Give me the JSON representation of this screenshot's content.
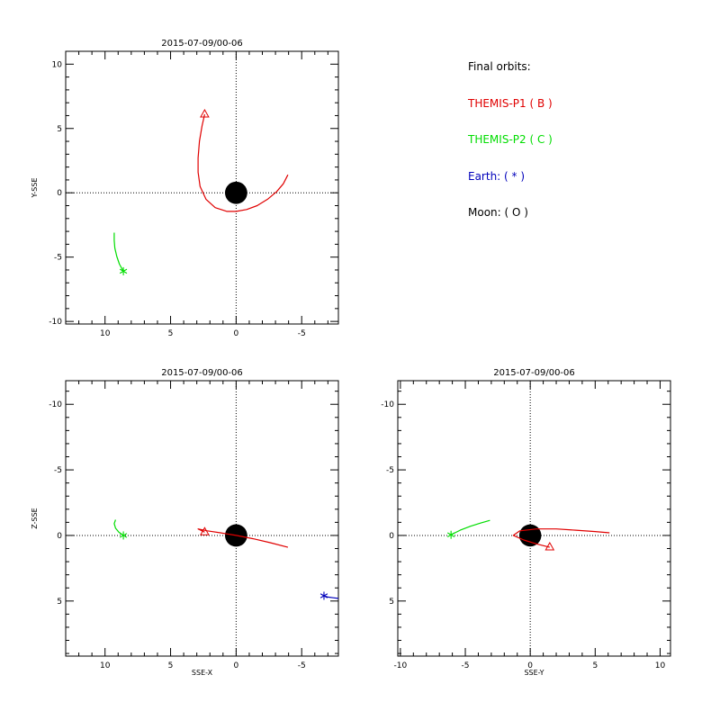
{
  "legend": {
    "header": "Final orbits:",
    "entries": [
      {
        "label": "THEMIS-P1 ( B )",
        "color": "#e00000"
      },
      {
        "label": "THEMIS-P2 ( C )",
        "color": "#00dd00"
      },
      {
        "label": "Earth: ( * )",
        "color": "#0000bb"
      },
      {
        "label": "Moon: ( O )",
        "color": "#000000"
      }
    ]
  },
  "chart_data": [
    {
      "type": "line",
      "id": "xy",
      "title": "2015-07-09/00-06",
      "xlabel": "",
      "ylabel": "Y-SSE",
      "xlim": [
        13,
        -7.8
      ],
      "ylim": [
        11,
        -10.2
      ],
      "xticks": [
        10,
        5,
        0,
        -5
      ],
      "yticks": [
        -10,
        -5,
        0,
        5,
        10
      ],
      "earth_disk": {
        "x": 0,
        "y": 0,
        "r": 0.85
      },
      "series": [
        {
          "color": "#e00000",
          "marker_end": "triangle",
          "points": [
            [
              2.4,
              6.1
            ],
            [
              2.6,
              5.2
            ],
            [
              2.8,
              4.0
            ],
            [
              2.9,
              2.7
            ],
            [
              2.9,
              1.6
            ],
            [
              2.75,
              0.5
            ],
            [
              2.3,
              -0.5
            ],
            [
              1.6,
              -1.15
            ],
            [
              0.7,
              -1.45
            ],
            [
              0,
              -1.45
            ],
            [
              -0.8,
              -1.3
            ],
            [
              -1.6,
              -1.0
            ],
            [
              -2.4,
              -0.5
            ],
            [
              -3.1,
              0.1
            ],
            [
              -3.6,
              0.7
            ],
            [
              -3.95,
              1.4
            ]
          ]
        },
        {
          "color": "#00dd00",
          "marker_end": "asterisk",
          "points": [
            [
              9.3,
              -3.1
            ],
            [
              9.3,
              -3.7
            ],
            [
              9.25,
              -4.3
            ],
            [
              9.1,
              -4.95
            ],
            [
              8.9,
              -5.55
            ],
            [
              8.6,
              -6.1
            ]
          ]
        }
      ]
    },
    {
      "type": "line",
      "id": "xz",
      "title": "2015-07-09/00-06",
      "xlabel": "SSE-X",
      "ylabel": "Z-SSE",
      "xlim": [
        13,
        -7.8
      ],
      "ylim": [
        -11.8,
        9.2
      ],
      "xticks": [
        10,
        5,
        0,
        -5
      ],
      "yticks": [
        5,
        0,
        -5,
        -10
      ],
      "earth_disk": {
        "x": 0,
        "y": 0,
        "r": 0.85
      },
      "series": [
        {
          "color": "#e00000",
          "marker_end": "triangle",
          "points": [
            [
              2.4,
              -0.25
            ],
            [
              2.9,
              -0.5
            ],
            [
              2.2,
              -0.35
            ],
            [
              1.2,
              -0.2
            ],
            [
              0,
              0.0
            ],
            [
              -1.3,
              0.25
            ],
            [
              -2.6,
              0.55
            ],
            [
              -3.95,
              0.9
            ]
          ]
        },
        {
          "color": "#00dd00",
          "marker_end": "asterisk",
          "points": [
            [
              9.2,
              -1.2
            ],
            [
              9.3,
              -0.9
            ],
            [
              9.2,
              -0.55
            ],
            [
              8.95,
              -0.25
            ],
            [
              8.6,
              0.0
            ]
          ]
        },
        {
          "color": "#0000bb",
          "marker_end": "asterisk",
          "points": [
            [
              -7.8,
              4.8
            ],
            [
              -7.4,
              4.75
            ],
            [
              -7.0,
              4.7
            ],
            [
              -6.7,
              4.6
            ]
          ]
        }
      ]
    },
    {
      "type": "line",
      "id": "yz",
      "title": "2015-07-09/00-06",
      "xlabel": "SSE-Y",
      "ylabel": "",
      "xlim": [
        -10.2,
        10.8
      ],
      "ylim": [
        -11.8,
        9.2
      ],
      "xticks": [
        -10,
        -5,
        0,
        5,
        10
      ],
      "yticks": [
        5,
        0,
        -5,
        -10
      ],
      "earth_disk": {
        "x": 0,
        "y": 0,
        "r": 0.85
      },
      "series": [
        {
          "color": "#e00000",
          "marker_end": "triangle",
          "points": [
            [
              1.5,
              0.9
            ],
            [
              0.5,
              0.65
            ],
            [
              -0.5,
              0.35
            ],
            [
              -1.3,
              0.0
            ],
            [
              -0.8,
              -0.35
            ],
            [
              0.5,
              -0.5
            ],
            [
              2.0,
              -0.5
            ],
            [
              3.5,
              -0.4
            ],
            [
              5.0,
              -0.3
            ],
            [
              6.1,
              -0.2
            ]
          ]
        },
        {
          "color": "#00dd00",
          "marker_end": "asterisk",
          "points": [
            [
              -3.1,
              -1.15
            ],
            [
              -3.8,
              -0.95
            ],
            [
              -4.6,
              -0.7
            ],
            [
              -5.4,
              -0.4
            ],
            [
              -6.1,
              -0.05
            ]
          ]
        }
      ]
    }
  ]
}
